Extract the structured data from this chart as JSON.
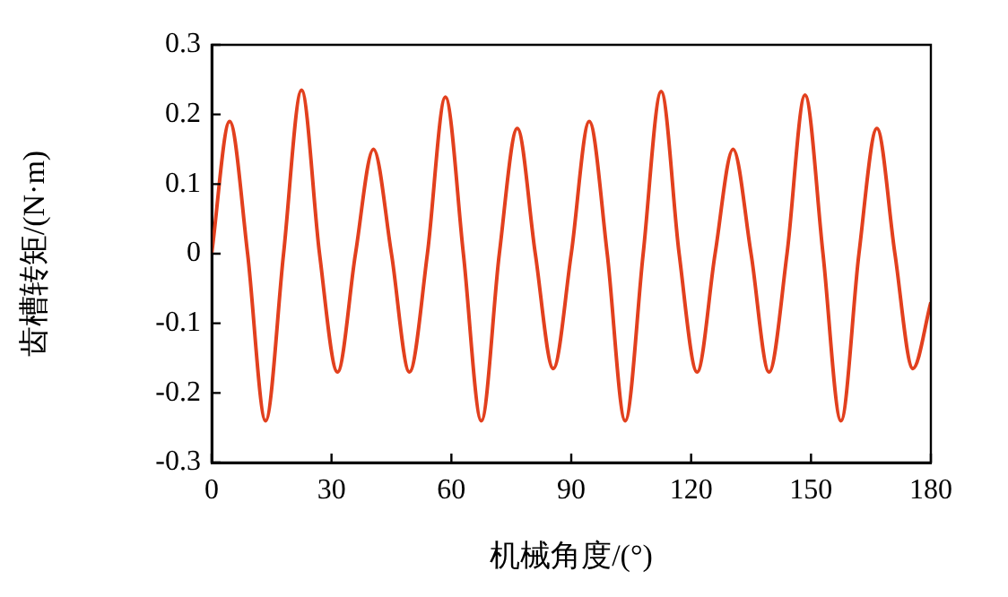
{
  "chart_data": {
    "type": "line",
    "xlabel": "机械角度/(°)",
    "ylabel": "齿槽转矩/(N·m)",
    "x": [
      0,
      4.5,
      9,
      13.5,
      18,
      22.5,
      27,
      31.5,
      36,
      40.5,
      45,
      49.5,
      54,
      58.5,
      63,
      67.5,
      72,
      76.5,
      81,
      85.5,
      90,
      94.5,
      99,
      103.5,
      108,
      112.5,
      117,
      121.5,
      126,
      130.5,
      135,
      139.5,
      144,
      148.5,
      153,
      157.5,
      162,
      166.5,
      171,
      175.5,
      180
    ],
    "series": [
      {
        "color": "#e2401e",
        "values": [
          0,
          0.19,
          0,
          -0.24,
          0,
          0.235,
          0,
          -0.17,
          0,
          0.15,
          0,
          -0.17,
          0,
          0.225,
          0,
          -0.24,
          0,
          0.18,
          0,
          -0.165,
          0,
          0.19,
          0,
          -0.24,
          0,
          0.233,
          0,
          -0.17,
          0,
          0.15,
          0,
          -0.17,
          0,
          0.228,
          0,
          -0.24,
          0,
          0.18,
          0,
          -0.165,
          -0.07
        ]
      }
    ],
    "xlim": [
      0,
      180
    ],
    "xticks": [
      0,
      30,
      60,
      90,
      120,
      150,
      180
    ],
    "ylim": [
      -0.3,
      0.3
    ],
    "yticks": [
      -0.3,
      -0.2,
      -0.1,
      0,
      0.1,
      0.2,
      0.3
    ],
    "grid": false,
    "legend": false,
    "marker": "none",
    "line_style": "solid"
  }
}
